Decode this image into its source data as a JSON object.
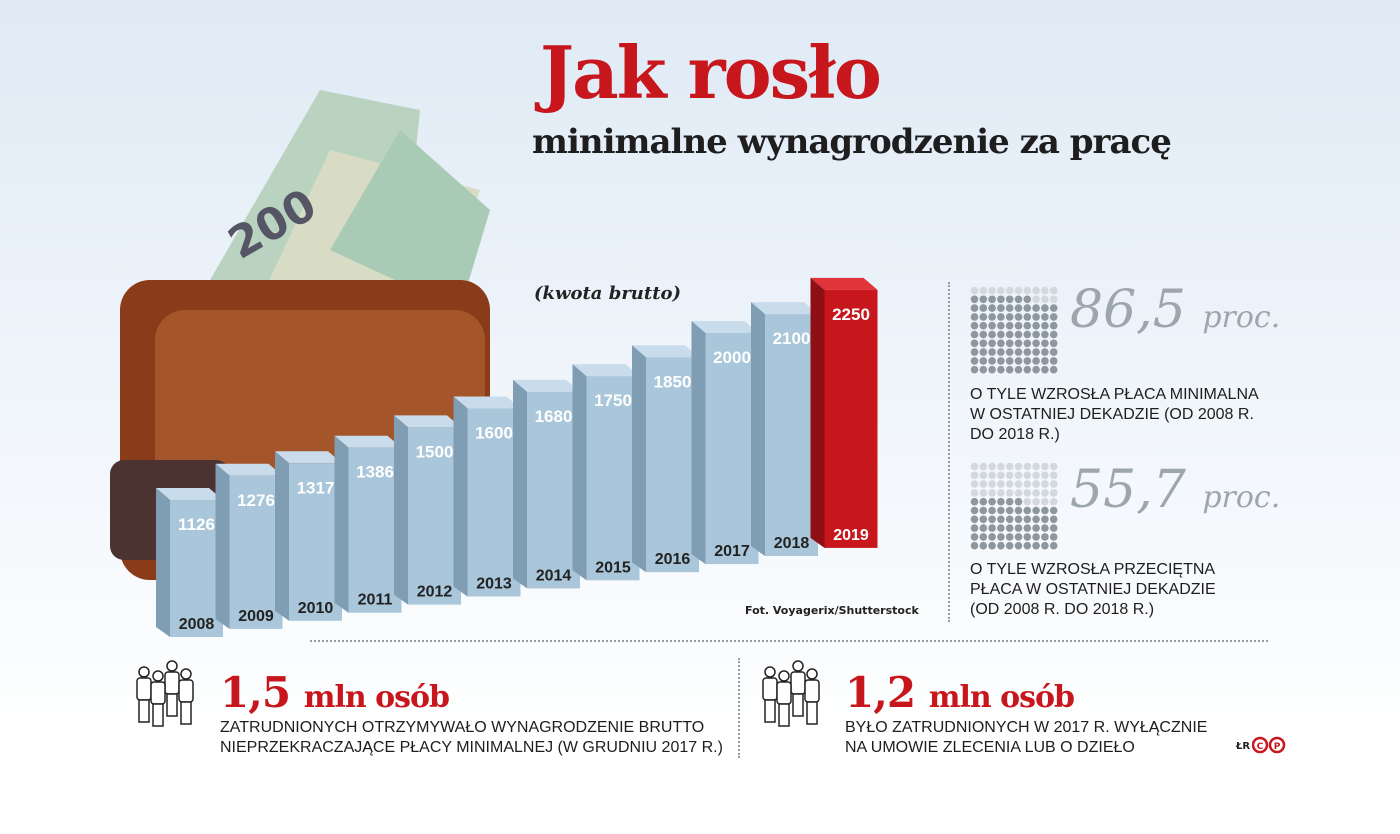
{
  "header": {
    "title": "Jak rosło",
    "subtitle": "minimalne wynagrodzenie za pracę",
    "note": "(kwota brutto)"
  },
  "credit": "Fot. Voyagerix/Shutterstock",
  "chart_data": {
    "type": "bar",
    "categories": [
      "2008",
      "2009",
      "2010",
      "2011",
      "2012",
      "2013",
      "2014",
      "2015",
      "2016",
      "2017",
      "2018",
      "2019"
    ],
    "values": [
      1126,
      1276,
      1317,
      1386,
      1500,
      1600,
      1680,
      1750,
      1850,
      2000,
      2100,
      2250
    ],
    "title": "Jak rosło minimalne wynagrodzenie za pracę",
    "subtitle": "(kwota brutto)",
    "highlight": "2019",
    "colors": {
      "bar": "#a9c6da",
      "highlight": "#c8161d"
    }
  },
  "stats": [
    {
      "value": "86,5",
      "unit": "proc.",
      "fraction": 0.865,
      "text": "O TYLE WZROSŁA PŁACA MINIMALNA W OSTATNIEJ DEKADZIE (OD 2008 R. DO 2018 R.)"
    },
    {
      "value": "55,7",
      "unit": "proc.",
      "fraction": 0.557,
      "text": "O TYLE WZROSŁA PRZECIĘTNA PŁACA W OSTATNIEJ DEKADZIE (OD 2008 R. DO 2018 R.)"
    }
  ],
  "facts": [
    {
      "value": "1,5",
      "unit": "mln osób",
      "line1": "ZATRUDNIONYCH OTRZYMYWAŁO WYNAGRODZENIE BRUTTO",
      "line2": "NIEPRZEKRACZAJĄCE PŁACY MINIMALNEJ (W GRUDNIU 2017 R.)"
    },
    {
      "value": "1,2",
      "unit": "mln osób",
      "line1": "BYŁO ZATRUDNIONYCH W 2017 R. WYŁĄCZNIE",
      "line2": "NA UMOWIE ZLECENIA LUB O DZIEŁO"
    }
  ],
  "signature": "ŁR",
  "logo": "CP"
}
